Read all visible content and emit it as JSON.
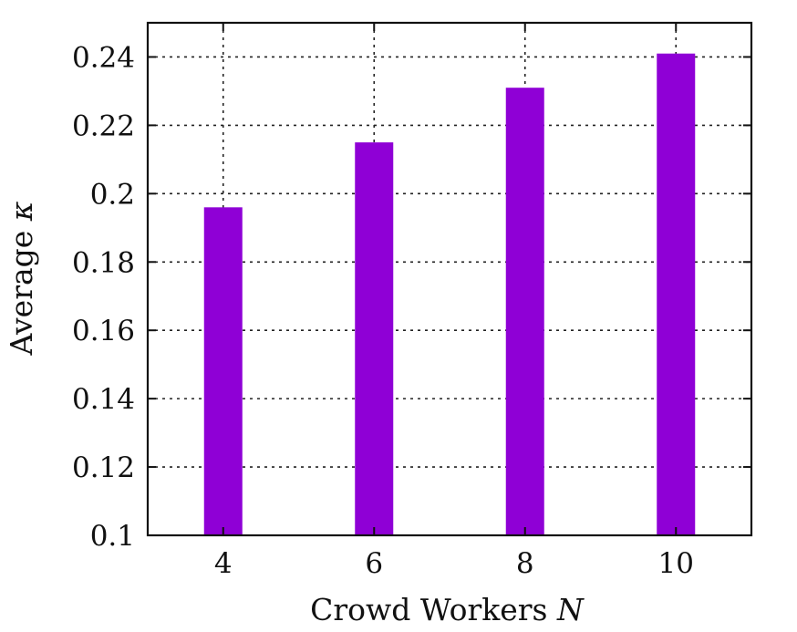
{
  "chart_data": {
    "type": "bar",
    "categories": [
      "4",
      "6",
      "8",
      "10"
    ],
    "values": [
      0.196,
      0.215,
      0.231,
      0.241
    ],
    "xlabel": "Crowd Workers",
    "xlabel_var": "N",
    "ylabel": "Average",
    "ylabel_var": "κ",
    "ylim": [
      0.1,
      0.25
    ],
    "yticks": [
      0.1,
      0.12,
      0.14,
      0.16,
      0.18,
      0.2,
      0.22,
      0.24
    ],
    "ytick_labels": [
      "0.1",
      "0.12",
      "0.14",
      "0.16",
      "0.18",
      "0.2",
      "0.22",
      "0.24"
    ],
    "grid": true,
    "bar_color": "#8f00d6"
  }
}
